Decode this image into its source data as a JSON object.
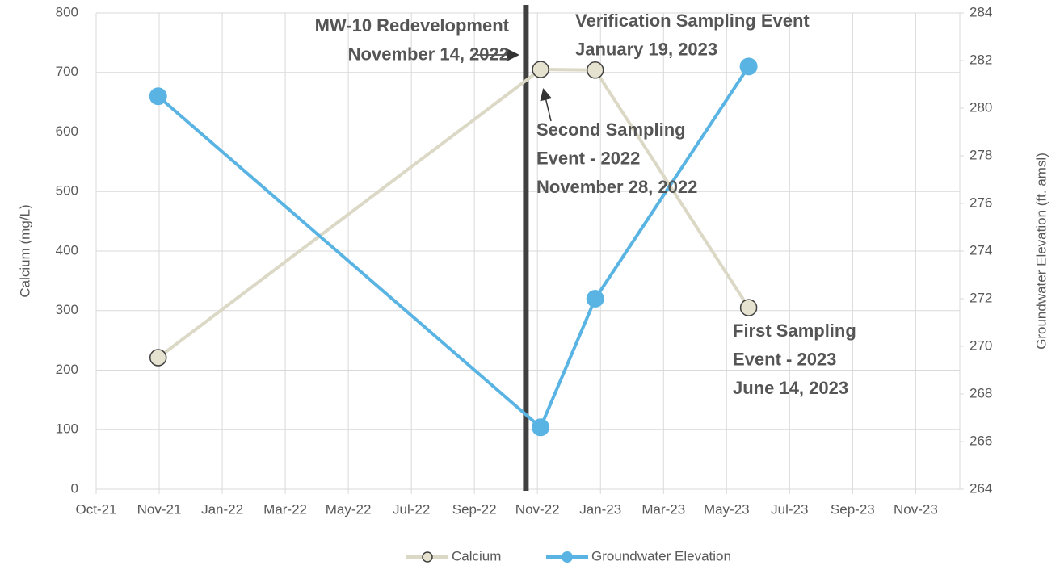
{
  "chart_data": {
    "type": "line",
    "y_label": "Calcium (mg/L)",
    "y2_label": "Groundwater Elevation (ft. amsl)",
    "x": [
      "2021-11-29",
      "2022-11-28",
      "2023-01-19",
      "2023-06-14"
    ],
    "series": [
      {
        "name": "Calcium",
        "color": "#dcd8c6",
        "marker_color": "#e6e2d0",
        "values": [
          221,
          705,
          704,
          305
        ]
      },
      {
        "name": "Groundwater Elevation",
        "color": "#5ab4e3",
        "axis": "y2",
        "values": [
          280.5,
          266.6,
          272,
          281.75
        ]
      }
    ],
    "xlim": [
      "2021-10-01",
      "2024-01-01"
    ],
    "xticks": [
      {
        "value": "2021-10-01",
        "label": "Oct-21"
      },
      {
        "value": "2021-11-30",
        "label": "Nov-21"
      },
      {
        "value": "2022-01-29",
        "label": "Jan-22"
      },
      {
        "value": "2022-03-30",
        "label": "Mar-22"
      },
      {
        "value": "2022-05-29",
        "label": "May-22"
      },
      {
        "value": "2022-07-28",
        "label": "Jul-22"
      },
      {
        "value": "2022-09-26",
        "label": "Sep-22"
      },
      {
        "value": "2022-11-25",
        "label": "Nov-22"
      },
      {
        "value": "2023-01-24",
        "label": "Jan-23"
      },
      {
        "value": "2023-03-25",
        "label": "Mar-23"
      },
      {
        "value": "2023-05-24",
        "label": "May-23"
      },
      {
        "value": "2023-07-23",
        "label": "Jul-23"
      },
      {
        "value": "2023-09-21",
        "label": "Sep-23"
      },
      {
        "value": "2023-11-20",
        "label": "Nov-23"
      }
    ],
    "ylim": [
      0,
      800
    ],
    "yticks": [
      0,
      100,
      200,
      300,
      400,
      500,
      600,
      700,
      800
    ],
    "y2lim": [
      264,
      284
    ],
    "y2ticks": [
      264,
      266,
      268,
      270,
      272,
      274,
      276,
      278,
      280,
      282,
      284
    ],
    "grid": true,
    "vline": {
      "x": "2022-11-14",
      "color": "#404040"
    },
    "annotations": [
      {
        "lines": [
          "MW-10 Redevelopment",
          "November 14, 2022"
        ]
      },
      {
        "lines": [
          "Verification Sampling Event",
          "January 19, 2023"
        ]
      },
      {
        "lines": [
          "Second Sampling",
          "Event - 2022",
          "November 28, 2022"
        ]
      },
      {
        "lines": [
          "First Sampling",
          "Event - 2023",
          "June 14, 2023"
        ]
      }
    ],
    "legend": "bottom"
  }
}
